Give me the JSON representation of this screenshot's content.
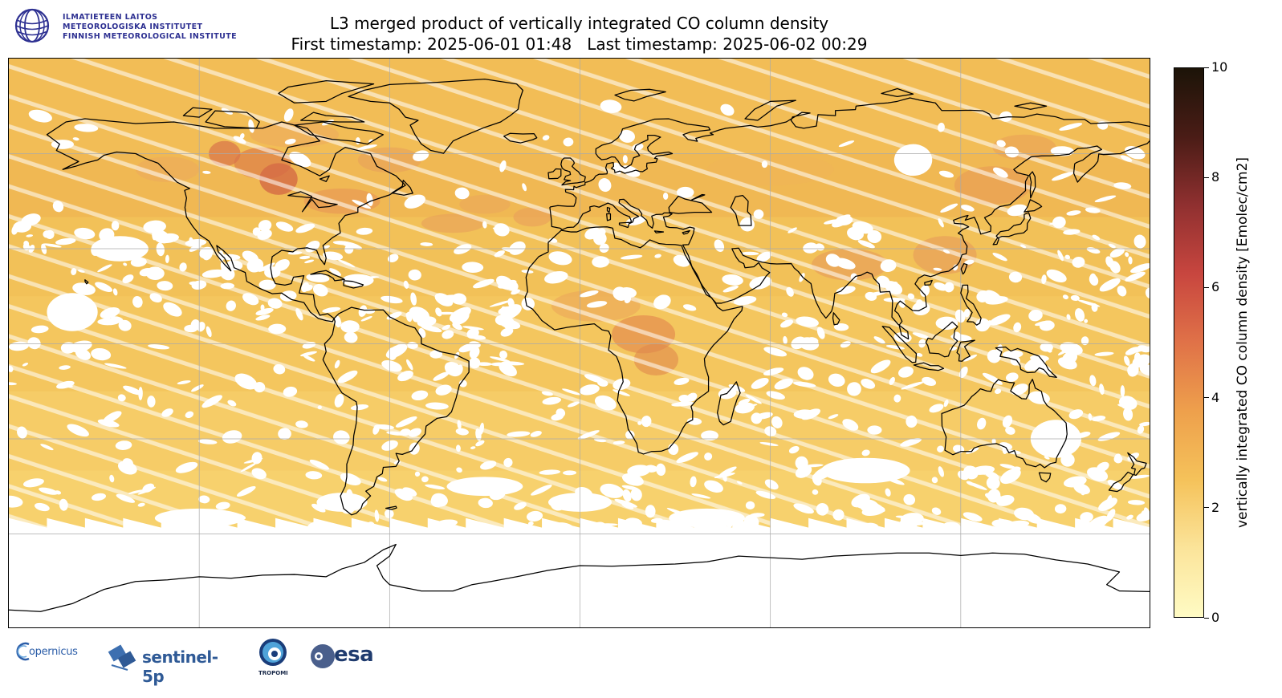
{
  "institute": {
    "lines": [
      "ILMATIETEEN LAITOS",
      "METEOROLOGISKA INSTITUTET",
      "FINNISH METEOROLOGICAL INSTITUTE"
    ],
    "logo_icon": "fmi-globe-icon",
    "color": "#2e3192"
  },
  "title": {
    "line1": "L3 merged product of vertically integrated CO column density",
    "line2": "First timestamp: 2025-06-01 01:48   Last timestamp: 2025-06-02 00:29"
  },
  "colorbar": {
    "label": "vertically integrated CO column density [Emolec/cm2]",
    "ticks": [
      "0",
      "2",
      "4",
      "6",
      "8",
      "10"
    ],
    "range": [
      0,
      10
    ],
    "colormap": [
      "#fffbc4",
      "#fbe49a",
      "#f5c25a",
      "#eea04c",
      "#e07248",
      "#c8463f",
      "#903030",
      "#4a1c16",
      "#1c1408"
    ]
  },
  "map": {
    "projection": "plate-carree",
    "lon_range": [
      -180,
      180
    ],
    "lat_range": [
      -90,
      90
    ],
    "gridlines": true,
    "gridline_color": "#aaaaaa",
    "coastline_color": "#000000",
    "missing_data_color": "#ffffff",
    "no_data_below_lat": -60
  },
  "partners": {
    "copernicus": "opernicus",
    "sentinel": "sentinel-5p",
    "tropomi": "TROPOMI",
    "esa": "esa"
  }
}
